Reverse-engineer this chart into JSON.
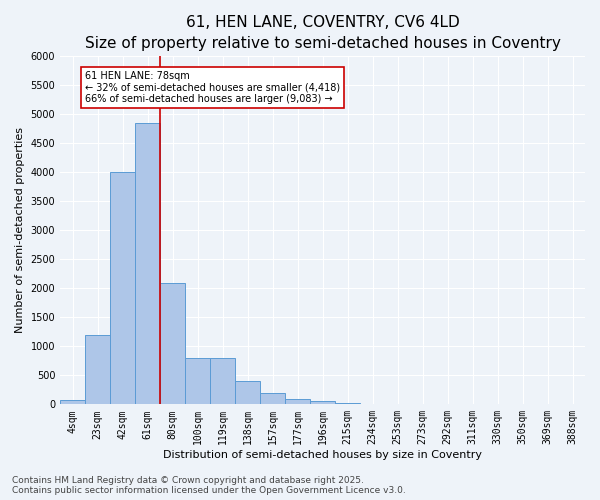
{
  "title": "61, HEN LANE, COVENTRY, CV6 4LD",
  "subtitle": "Size of property relative to semi-detached houses in Coventry",
  "xlabel": "Distribution of semi-detached houses by size in Coventry",
  "ylabel": "Number of semi-detached properties",
  "categories": [
    "4sqm",
    "23sqm",
    "42sqm",
    "61sqm",
    "80sqm",
    "100sqm",
    "119sqm",
    "138sqm",
    "157sqm",
    "177sqm",
    "196sqm",
    "215sqm",
    "234sqm",
    "253sqm",
    "273sqm",
    "292sqm",
    "311sqm",
    "330sqm",
    "350sqm",
    "369sqm",
    "388sqm"
  ],
  "values": [
    70,
    1200,
    4000,
    4850,
    2100,
    800,
    800,
    400,
    200,
    100,
    60,
    30,
    0,
    0,
    0,
    0,
    0,
    0,
    0,
    0,
    0
  ],
  "bar_color": "#aec6e8",
  "bar_edge_color": "#5b9bd5",
  "vline_x": 3.5,
  "vline_color": "#cc0000",
  "annotation_text": "61 HEN LANE: 78sqm\n← 32% of semi-detached houses are smaller (4,418)\n66% of semi-detached houses are larger (9,083) →",
  "annotation_box_color": "#ffffff",
  "annotation_box_edge": "#cc0000",
  "ylim": [
    0,
    6000
  ],
  "yticks": [
    0,
    500,
    1000,
    1500,
    2000,
    2500,
    3000,
    3500,
    4000,
    4500,
    5000,
    5500,
    6000
  ],
  "footnote": "Contains HM Land Registry data © Crown copyright and database right 2025.\nContains public sector information licensed under the Open Government Licence v3.0.",
  "bg_color": "#eef3f9",
  "grid_color": "#ffffff",
  "title_fontsize": 11,
  "subtitle_fontsize": 9,
  "axis_label_fontsize": 8,
  "tick_fontsize": 7,
  "annotation_fontsize": 7,
  "footnote_fontsize": 6.5
}
